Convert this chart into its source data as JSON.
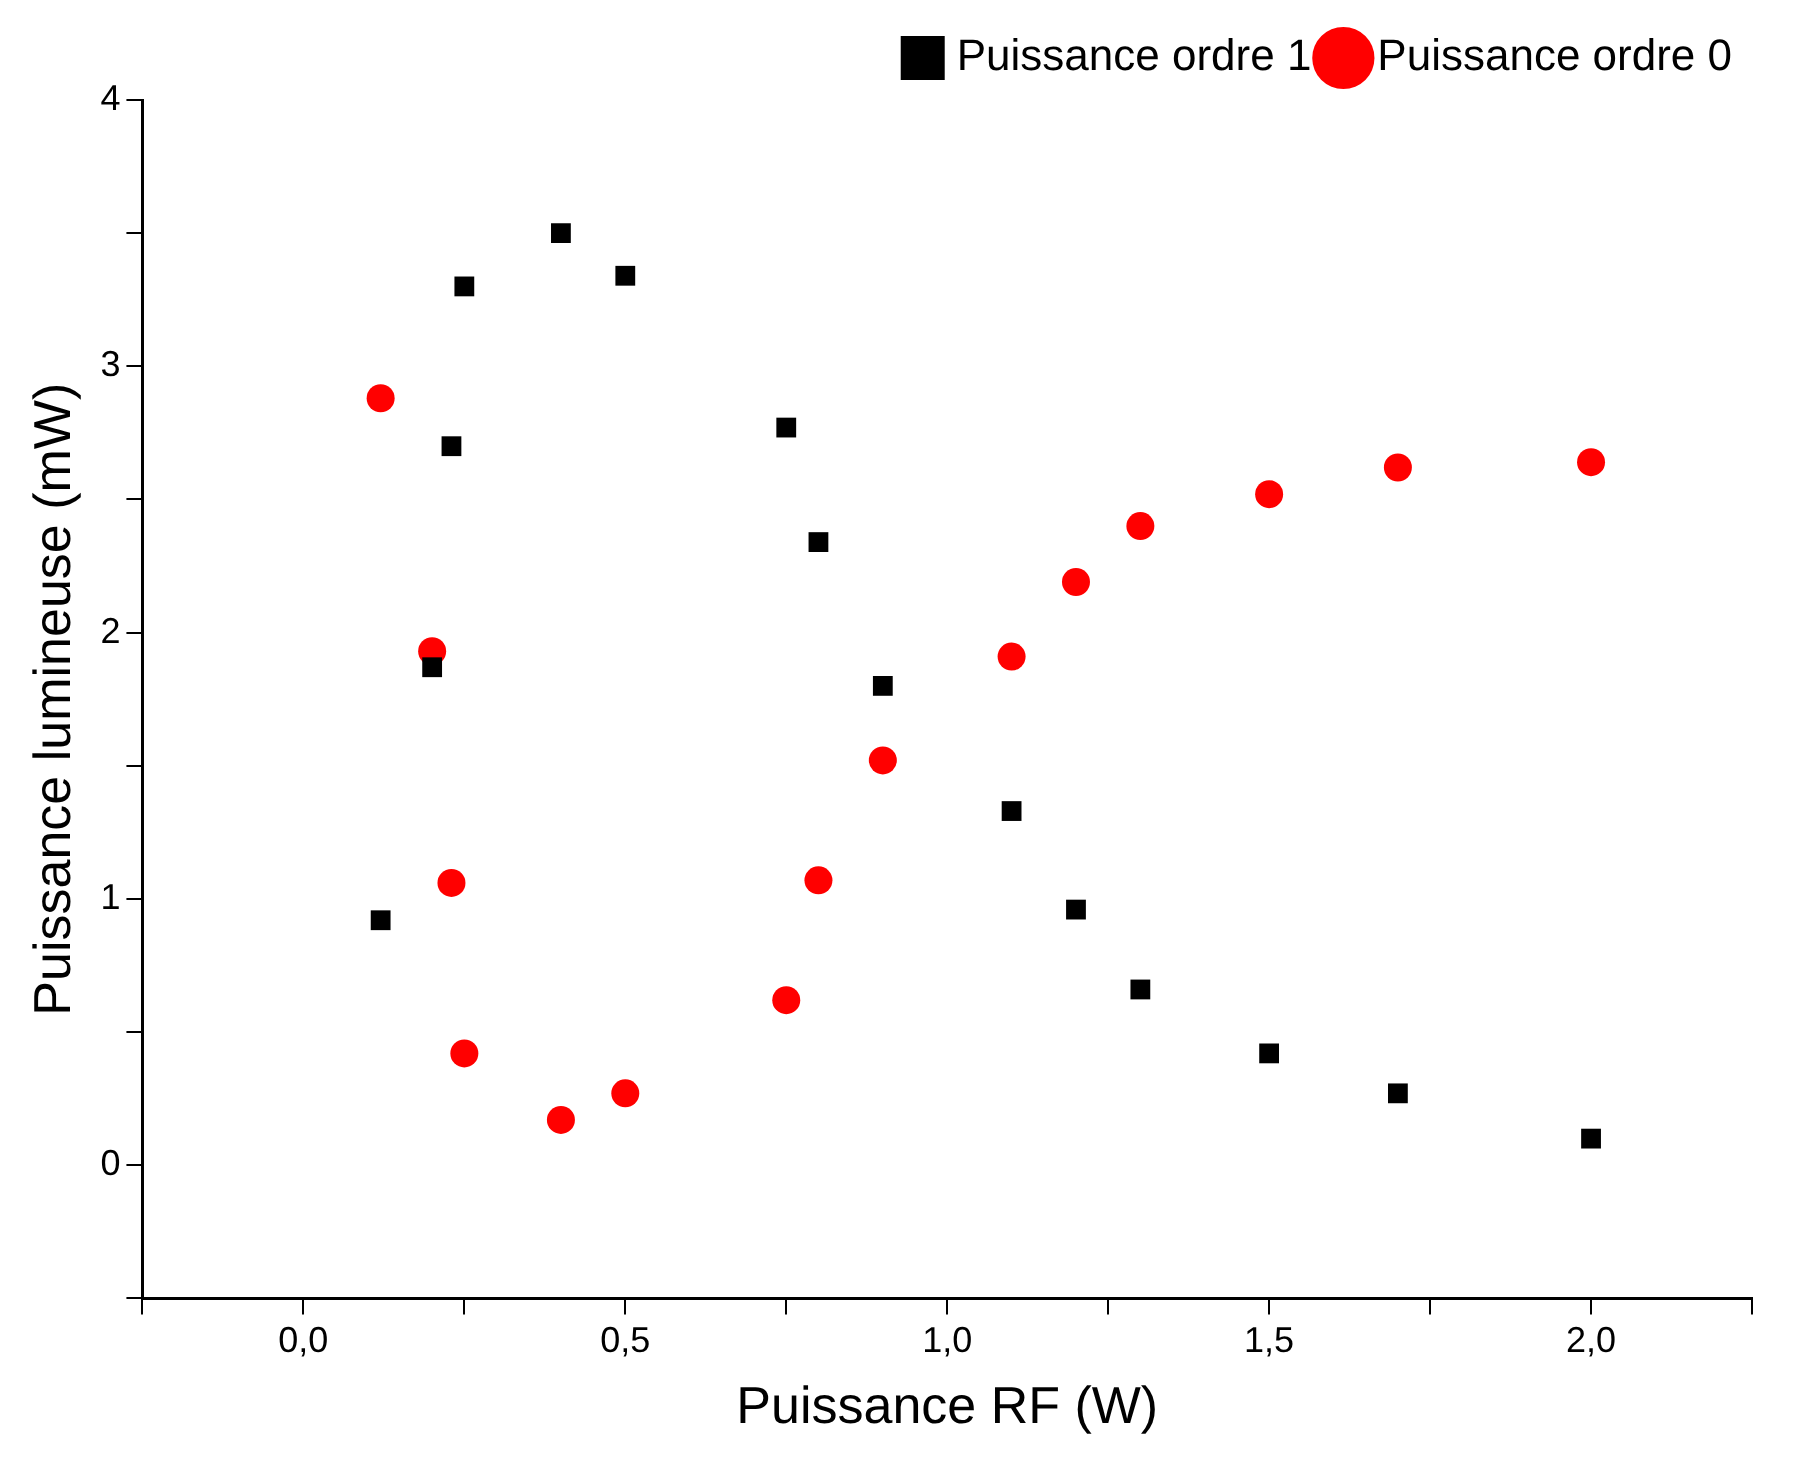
{
  "chart_data": {
    "type": "scatter",
    "xlabel": "Puissance RF (W)",
    "ylabel": "Puissance lumineuse (mW)",
    "xlim": [
      -0.25,
      2.25
    ],
    "xticks": [
      {
        "value": -0.25,
        "label": null
      },
      {
        "value": 0,
        "label": "0,0"
      },
      {
        "value": 0.25,
        "label": null
      },
      {
        "value": 0.5,
        "label": "0,5"
      },
      {
        "value": 0.75,
        "label": null
      },
      {
        "value": 1,
        "label": "1,0"
      },
      {
        "value": 1.25,
        "label": null
      },
      {
        "value": 1.5,
        "label": "1,5"
      },
      {
        "value": 1.75,
        "label": null
      },
      {
        "value": 2,
        "label": "2,0"
      },
      {
        "value": 2.25,
        "label": null
      }
    ],
    "ylim": [
      -0.5,
      4
    ],
    "yticks": [
      {
        "value": -0.5,
        "label": null
      },
      0,
      {
        "value": 0.5,
        "label": null
      },
      1,
      {
        "value": 1.5,
        "label": null
      },
      2,
      {
        "value": 2.5,
        "label": null
      },
      3,
      {
        "value": 3.5,
        "label": null
      },
      4
    ],
    "grid": false,
    "legend": "top right",
    "series": [
      {
        "name": "Puissance ordre 1",
        "color": "#000000",
        "marker": "square",
        "x": [
          0.12,
          0.2,
          0.23,
          0.25,
          0.4,
          0.5,
          0.75,
          0.8,
          0.9,
          1.1,
          1.2,
          1.3,
          1.5,
          1.7,
          2.0
        ],
        "values": [
          0.92,
          1.87,
          2.7,
          3.3,
          3.5,
          3.34,
          2.77,
          2.34,
          1.8,
          1.33,
          0.96,
          0.66,
          0.42,
          0.27,
          0.1
        ]
      },
      {
        "name": "Puissance ordre 0",
        "color": "#ff0000",
        "marker": "circle",
        "x": [
          0.12,
          0.2,
          0.23,
          0.25,
          0.4,
          0.5,
          0.75,
          0.8,
          0.9,
          1.1,
          1.2,
          1.3,
          1.5,
          1.7,
          2.0
        ],
        "values": [
          2.88,
          1.93,
          1.06,
          0.42,
          0.17,
          0.27,
          0.62,
          1.07,
          1.52,
          1.91,
          2.19,
          2.4,
          2.52,
          2.62,
          2.64
        ]
      }
    ]
  }
}
